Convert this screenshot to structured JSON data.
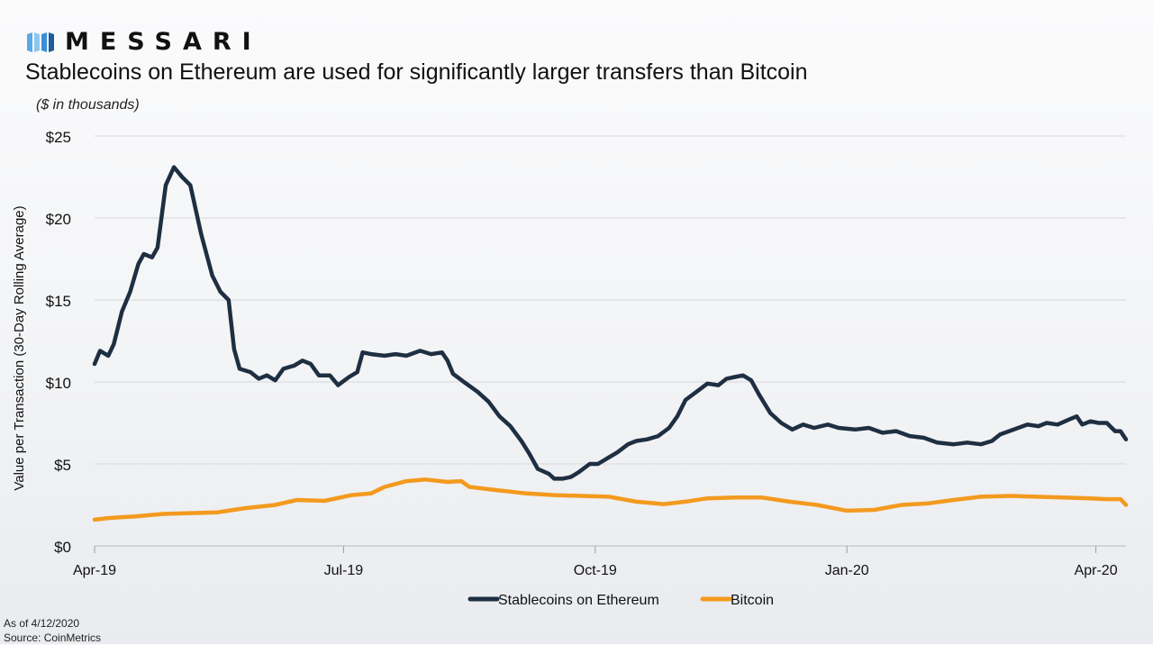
{
  "brand": {
    "logo_icon": "messari-bars-icon",
    "name": "MESSARI"
  },
  "header": {
    "title": "Stablecoins on Ethereum are used for significantly larger transfers than Bitcoin",
    "subtitle": "($ in thousands)"
  },
  "chart_data": {
    "type": "line",
    "ylabel": "Value per Transaction (30-Day Rolling Average)",
    "xlabel": "",
    "ylim": [
      0,
      25
    ],
    "y_ticks": [
      "$0",
      "$5",
      "$10",
      "$15",
      "$20",
      "$25"
    ],
    "xlim": [
      "2019-04-01",
      "2020-04-12"
    ],
    "x_ticks": [
      {
        "label": "Apr-19",
        "date": "2019-04-01"
      },
      {
        "label": "Jul-19",
        "date": "2019-07-01"
      },
      {
        "label": "Oct-19",
        "date": "2019-10-01"
      },
      {
        "label": "Jan-20",
        "date": "2020-01-01"
      },
      {
        "label": "Apr-20",
        "date": "2020-04-01"
      }
    ],
    "grid": true,
    "legend_position": "bottom",
    "series": [
      {
        "name": "Stablecoins on Ethereum",
        "color": "#1e2f42",
        "points": [
          [
            "2019-04-01",
            11.1
          ],
          [
            "2019-04-03",
            11.9
          ],
          [
            "2019-04-06",
            11.6
          ],
          [
            "2019-04-08",
            12.3
          ],
          [
            "2019-04-11",
            14.3
          ],
          [
            "2019-04-14",
            15.5
          ],
          [
            "2019-04-17",
            17.2
          ],
          [
            "2019-04-19",
            17.8
          ],
          [
            "2019-04-22",
            17.6
          ],
          [
            "2019-04-24",
            18.2
          ],
          [
            "2019-04-27",
            22.0
          ],
          [
            "2019-04-30",
            23.1
          ],
          [
            "2019-05-03",
            22.5
          ],
          [
            "2019-05-06",
            22.0
          ],
          [
            "2019-05-10",
            19.0
          ],
          [
            "2019-05-14",
            16.5
          ],
          [
            "2019-05-17",
            15.5
          ],
          [
            "2019-05-20",
            15.0
          ],
          [
            "2019-05-22",
            12.0
          ],
          [
            "2019-05-24",
            10.8
          ],
          [
            "2019-05-28",
            10.6
          ],
          [
            "2019-05-31",
            10.2
          ],
          [
            "2019-06-03",
            10.4
          ],
          [
            "2019-06-06",
            10.1
          ],
          [
            "2019-06-09",
            10.8
          ],
          [
            "2019-06-13",
            11.0
          ],
          [
            "2019-06-16",
            11.3
          ],
          [
            "2019-06-19",
            11.1
          ],
          [
            "2019-06-22",
            10.4
          ],
          [
            "2019-06-26",
            10.4
          ],
          [
            "2019-06-29",
            9.8
          ],
          [
            "2019-07-03",
            10.3
          ],
          [
            "2019-07-06",
            10.6
          ],
          [
            "2019-07-08",
            11.8
          ],
          [
            "2019-07-11",
            11.7
          ],
          [
            "2019-07-16",
            11.6
          ],
          [
            "2019-07-20",
            11.7
          ],
          [
            "2019-07-24",
            11.6
          ],
          [
            "2019-07-29",
            11.9
          ],
          [
            "2019-08-02",
            11.7
          ],
          [
            "2019-08-06",
            11.8
          ],
          [
            "2019-08-08",
            11.3
          ],
          [
            "2019-08-10",
            10.5
          ],
          [
            "2019-08-14",
            10.0
          ],
          [
            "2019-08-19",
            9.4
          ],
          [
            "2019-08-23",
            8.8
          ],
          [
            "2019-08-27",
            7.9
          ],
          [
            "2019-08-31",
            7.3
          ],
          [
            "2019-09-04",
            6.4
          ],
          [
            "2019-09-07",
            5.6
          ],
          [
            "2019-09-10",
            4.7
          ],
          [
            "2019-09-14",
            4.4
          ],
          [
            "2019-09-16",
            4.1
          ],
          [
            "2019-09-19",
            4.1
          ],
          [
            "2019-09-22",
            4.2
          ],
          [
            "2019-09-25",
            4.5
          ],
          [
            "2019-09-29",
            5.0
          ],
          [
            "2019-10-02",
            5.0
          ],
          [
            "2019-10-06",
            5.4
          ],
          [
            "2019-10-09",
            5.7
          ],
          [
            "2019-10-13",
            6.2
          ],
          [
            "2019-10-16",
            6.4
          ],
          [
            "2019-10-20",
            6.5
          ],
          [
            "2019-10-24",
            6.7
          ],
          [
            "2019-10-28",
            7.2
          ],
          [
            "2019-10-31",
            7.9
          ],
          [
            "2019-11-03",
            8.9
          ],
          [
            "2019-11-07",
            9.4
          ],
          [
            "2019-11-11",
            9.9
          ],
          [
            "2019-11-15",
            9.8
          ],
          [
            "2019-11-18",
            10.2
          ],
          [
            "2019-11-21",
            10.3
          ],
          [
            "2019-11-24",
            10.4
          ],
          [
            "2019-11-27",
            10.1
          ],
          [
            "2019-11-30",
            9.2
          ],
          [
            "2019-12-04",
            8.1
          ],
          [
            "2019-12-08",
            7.5
          ],
          [
            "2019-12-12",
            7.1
          ],
          [
            "2019-12-16",
            7.4
          ],
          [
            "2019-12-20",
            7.2
          ],
          [
            "2019-12-25",
            7.4
          ],
          [
            "2019-12-29",
            7.2
          ],
          [
            "2020-01-04",
            7.1
          ],
          [
            "2020-01-09",
            7.2
          ],
          [
            "2020-01-14",
            6.9
          ],
          [
            "2020-01-19",
            7.0
          ],
          [
            "2020-01-24",
            6.7
          ],
          [
            "2020-01-29",
            6.6
          ],
          [
            "2020-02-03",
            6.3
          ],
          [
            "2020-02-09",
            6.2
          ],
          [
            "2020-02-14",
            6.3
          ],
          [
            "2020-02-19",
            6.2
          ],
          [
            "2020-02-23",
            6.4
          ],
          [
            "2020-02-26",
            6.8
          ],
          [
            "2020-03-02",
            7.1
          ],
          [
            "2020-03-07",
            7.4
          ],
          [
            "2020-03-11",
            7.3
          ],
          [
            "2020-03-14",
            7.5
          ],
          [
            "2020-03-18",
            7.4
          ],
          [
            "2020-03-22",
            7.7
          ],
          [
            "2020-03-25",
            7.9
          ],
          [
            "2020-03-27",
            7.4
          ],
          [
            "2020-03-30",
            7.6
          ],
          [
            "2020-04-02",
            7.5
          ],
          [
            "2020-04-05",
            7.5
          ],
          [
            "2020-04-08",
            7.0
          ],
          [
            "2020-04-10",
            7.0
          ],
          [
            "2020-04-12",
            6.5
          ]
        ]
      },
      {
        "name": "Bitcoin",
        "color": "#f39a1e",
        "points": [
          [
            "2019-04-01",
            1.6
          ],
          [
            "2019-04-06",
            1.7
          ],
          [
            "2019-04-16",
            1.8
          ],
          [
            "2019-04-26",
            1.95
          ],
          [
            "2019-05-06",
            2.0
          ],
          [
            "2019-05-16",
            2.05
          ],
          [
            "2019-05-26",
            2.3
          ],
          [
            "2019-06-06",
            2.5
          ],
          [
            "2019-06-14",
            2.8
          ],
          [
            "2019-06-24",
            2.75
          ],
          [
            "2019-07-04",
            3.1
          ],
          [
            "2019-07-11",
            3.2
          ],
          [
            "2019-07-16",
            3.6
          ],
          [
            "2019-07-24",
            3.95
          ],
          [
            "2019-07-31",
            4.05
          ],
          [
            "2019-08-08",
            3.9
          ],
          [
            "2019-08-13",
            3.95
          ],
          [
            "2019-08-16",
            3.6
          ],
          [
            "2019-08-26",
            3.4
          ],
          [
            "2019-09-06",
            3.2
          ],
          [
            "2019-09-16",
            3.1
          ],
          [
            "2019-09-26",
            3.05
          ],
          [
            "2019-10-06",
            3.0
          ],
          [
            "2019-10-16",
            2.7
          ],
          [
            "2019-10-26",
            2.55
          ],
          [
            "2019-11-03",
            2.7
          ],
          [
            "2019-11-11",
            2.9
          ],
          [
            "2019-11-21",
            2.95
          ],
          [
            "2019-12-01",
            2.95
          ],
          [
            "2019-12-11",
            2.7
          ],
          [
            "2019-12-21",
            2.5
          ],
          [
            "2020-01-01",
            2.15
          ],
          [
            "2020-01-11",
            2.2
          ],
          [
            "2020-01-21",
            2.5
          ],
          [
            "2020-01-31",
            2.6
          ],
          [
            "2020-02-09",
            2.8
          ],
          [
            "2020-02-19",
            3.0
          ],
          [
            "2020-03-01",
            3.05
          ],
          [
            "2020-03-10",
            3.0
          ],
          [
            "2020-03-20",
            2.95
          ],
          [
            "2020-03-30",
            2.9
          ],
          [
            "2020-04-05",
            2.85
          ],
          [
            "2020-04-10",
            2.85
          ],
          [
            "2020-04-12",
            2.5
          ]
        ]
      }
    ]
  },
  "footnote": {
    "as_of": "As of 4/12/2020",
    "source": "Source: CoinMetrics"
  }
}
